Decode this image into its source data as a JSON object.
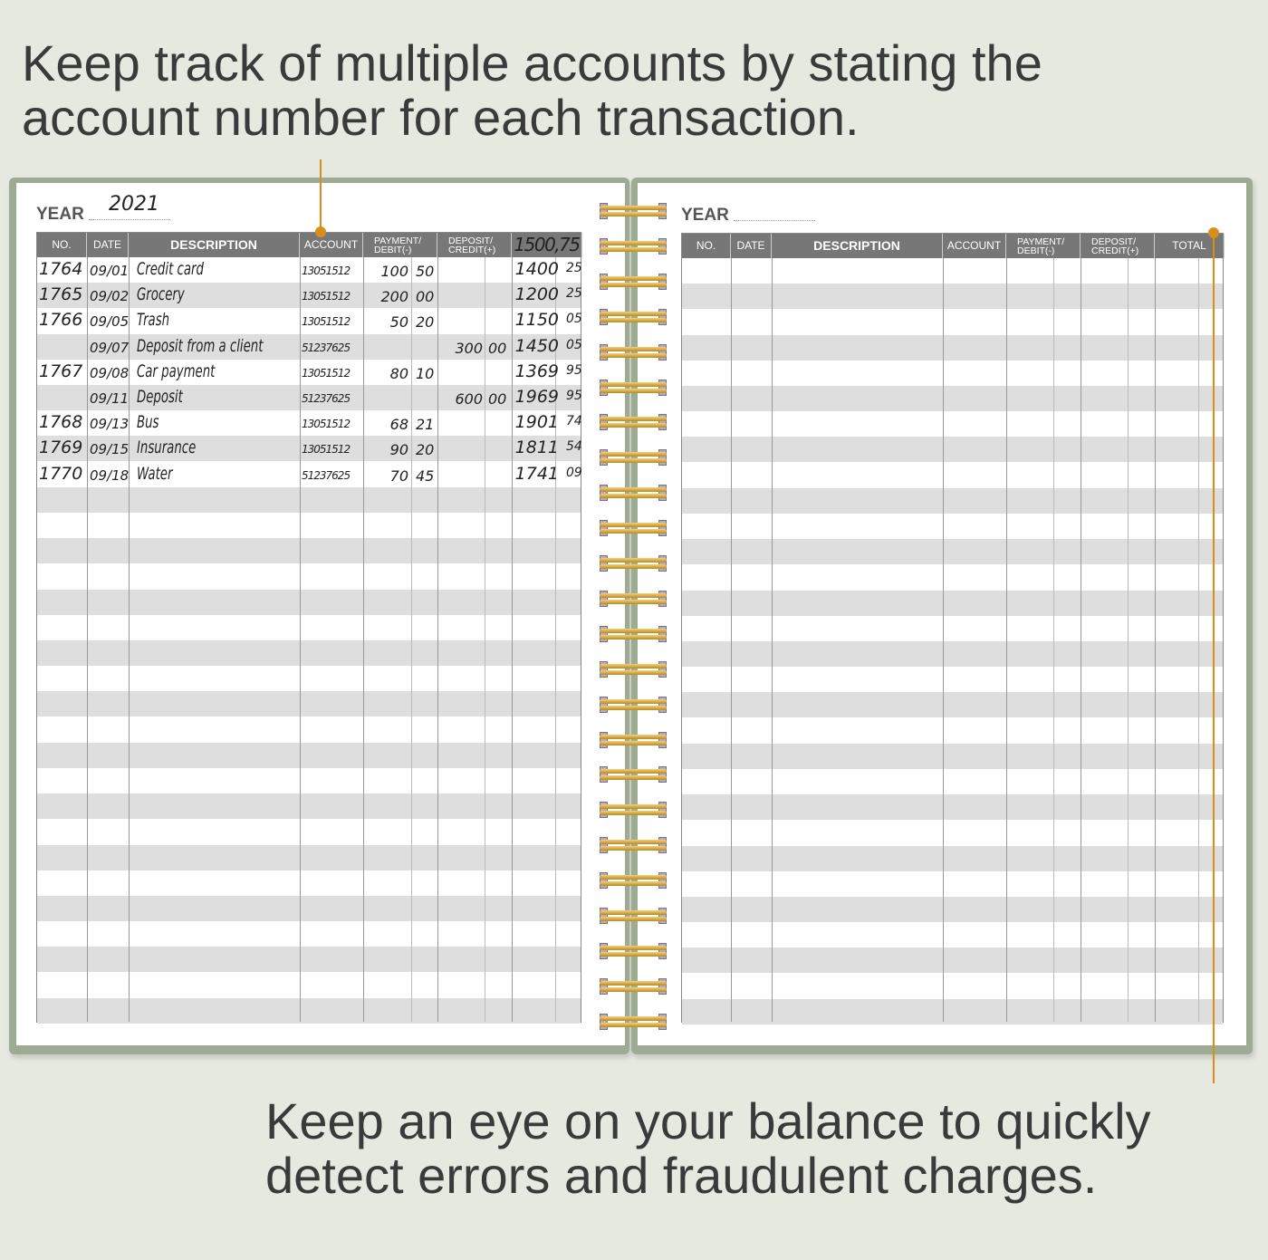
{
  "captions": {
    "top": "Keep track of multiple accounts by stating the account number for each transaction.",
    "bottom": "Keep an eye on your balance  to quickly detect errors and fraudulent charges."
  },
  "colors": {
    "accent": "#d98e1a",
    "cover": "#9eab93",
    "header": "#777777",
    "stripe": "#dedede"
  },
  "left_page": {
    "year_label": "YEAR",
    "year_value": "2021",
    "headers": {
      "no": "NO.",
      "date": "DATE",
      "description": "DESCRIPTION",
      "account": "ACCOUNT",
      "payment": "PAYMENT/\nDEBIT(-)",
      "deposit": "DEPOSIT/\nCREDIT(+)",
      "total": "1500,75"
    },
    "rows": [
      {
        "no": "1764",
        "date": "09/01",
        "description": "Credit card",
        "account": "13051512",
        "payment": "100",
        "payment_c": "50",
        "deposit": "",
        "deposit_c": "",
        "total": "1400",
        "total_c": "25"
      },
      {
        "no": "1765",
        "date": "09/02",
        "description": "Grocery",
        "account": "13051512",
        "payment": "200",
        "payment_c": "00",
        "deposit": "",
        "deposit_c": "",
        "total": "1200",
        "total_c": "25"
      },
      {
        "no": "1766",
        "date": "09/05",
        "description": "Trash",
        "account": "13051512",
        "payment": "50",
        "payment_c": "20",
        "deposit": "",
        "deposit_c": "",
        "total": "1150",
        "total_c": "05"
      },
      {
        "no": "",
        "date": "09/07",
        "description": "Deposit from a client",
        "account": "51237625",
        "payment": "",
        "payment_c": "",
        "deposit": "300",
        "deposit_c": "00",
        "total": "1450",
        "total_c": "05"
      },
      {
        "no": "1767",
        "date": "09/08",
        "description": "Car payment",
        "account": "13051512",
        "payment": "80",
        "payment_c": "10",
        "deposit": "",
        "deposit_c": "",
        "total": "1369",
        "total_c": "95"
      },
      {
        "no": "",
        "date": "09/11",
        "description": "Deposit",
        "account": "51237625",
        "payment": "",
        "payment_c": "",
        "deposit": "600",
        "deposit_c": "00",
        "total": "1969",
        "total_c": "95"
      },
      {
        "no": "1768",
        "date": "09/13",
        "description": "Bus",
        "account": "13051512",
        "payment": "68",
        "payment_c": "21",
        "deposit": "",
        "deposit_c": "",
        "total": "1901",
        "total_c": "74"
      },
      {
        "no": "1769",
        "date": "09/15",
        "description": "Insurance",
        "account": "13051512",
        "payment": "90",
        "payment_c": "20",
        "deposit": "",
        "deposit_c": "",
        "total": "1811",
        "total_c": "54"
      },
      {
        "no": "1770",
        "date": "09/18",
        "description": "Water",
        "account": "51237625",
        "payment": "70",
        "payment_c": "45",
        "deposit": "",
        "deposit_c": "",
        "total": "1741",
        "total_c": "09"
      }
    ]
  },
  "right_page": {
    "year_label": "YEAR",
    "headers": {
      "no": "NO.",
      "date": "DATE",
      "description": "DESCRIPTION",
      "account": "ACCOUNT",
      "payment": "PAYMENT/\nDEBIT(-)",
      "deposit": "DEPOSIT/\nCREDIT(+)",
      "total": "TOTAL"
    }
  }
}
